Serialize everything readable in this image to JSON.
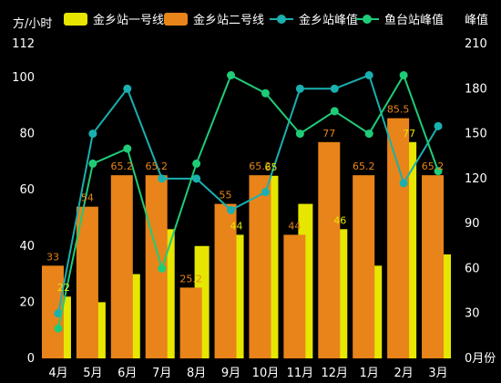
{
  "chart_data": {
    "type": "bar",
    "categories": [
      "4月",
      "5月",
      "6月",
      "7月",
      "8月",
      "9月",
      "10月",
      "11月",
      "12月",
      "1月",
      "2月",
      "3月"
    ],
    "y_left_unit": "方/小时",
    "y_right_unit": "峰值",
    "y_left_ticks": [
      "0",
      "20",
      "40",
      "60",
      "80",
      "100",
      "112"
    ],
    "y_right_ticks": [
      "0月份",
      "30",
      "60",
      "90",
      "120",
      "150",
      "180",
      "210"
    ],
    "y_left_range": [
      0,
      112
    ],
    "y_right_range": [
      0,
      210
    ],
    "series": [
      {
        "name": "金乡站一号线",
        "type": "bar",
        "axis": "left",
        "color": "#e6e600",
        "values": [
          22,
          20,
          30,
          46,
          40,
          44,
          65,
          55,
          46,
          33,
          77,
          37
        ],
        "labels": [
          "22",
          "",
          "",
          "",
          "",
          "44",
          "65",
          "",
          "46",
          "",
          "77",
          ""
        ]
      },
      {
        "name": "金乡站二号线",
        "type": "bar",
        "axis": "left",
        "color": "#e8841a",
        "values": [
          33,
          54,
          65.2,
          65.2,
          25.2,
          55,
          65.2,
          44,
          77,
          65.2,
          85.5,
          65.2
        ],
        "labels": [
          "33",
          "54",
          "65.2",
          "65.2",
          "25.2",
          "55",
          "65.2",
          "44",
          "77",
          "65.2",
          "85.5",
          "65.2"
        ]
      },
      {
        "name": "金乡站峰值",
        "type": "line",
        "axis": "right",
        "color": "#1ab0b0",
        "values": [
          30,
          150,
          180,
          120,
          120,
          99,
          111,
          180,
          180,
          189,
          117,
          155
        ]
      },
      {
        "name": "鱼台站峰值",
        "type": "line",
        "axis": "right",
        "color": "#1ecc78",
        "values": [
          20,
          130,
          140,
          60,
          130,
          189,
          177,
          150,
          165,
          150,
          189,
          125
        ]
      }
    ],
    "grid": false,
    "legend_position": "top"
  }
}
